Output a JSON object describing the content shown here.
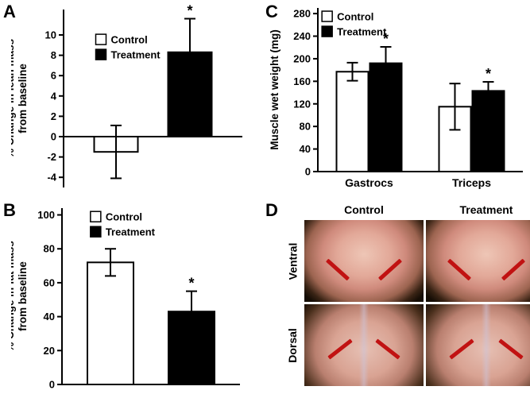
{
  "panels": {
    "a": {
      "label": "A"
    },
    "b": {
      "label": "B"
    },
    "c": {
      "label": "C"
    },
    "d": {
      "label": "D",
      "columns": [
        "Control",
        "Treatment"
      ],
      "rows": [
        "Ventral",
        "Dorsal"
      ]
    }
  },
  "colors": {
    "control_fill": "#ffffff",
    "treatment_fill": "#000000",
    "axis": "#000000",
    "arrow_red": "#c11212"
  },
  "chart_data": [
    {
      "id": "chart-a",
      "type": "bar",
      "title": "",
      "ylabel": "% Change in lean mass\nfrom baseline",
      "ylim": [
        -5,
        12.5
      ],
      "yticks": [
        -4,
        -2,
        0,
        2,
        4,
        6,
        8,
        10
      ],
      "categories": [
        ""
      ],
      "show_category_labels": false,
      "sig_marker": "*",
      "legend_position": "upper-left-inside",
      "series": [
        {
          "name": "Control",
          "fill": "#ffffff",
          "values": [
            -1.5
          ],
          "errors": [
            2.6
          ],
          "sig": [
            false
          ]
        },
        {
          "name": "Treatment",
          "fill": "#000000",
          "values": [
            8.3
          ],
          "errors": [
            3.3
          ],
          "sig": [
            true
          ]
        }
      ]
    },
    {
      "id": "chart-b",
      "type": "bar",
      "title": "",
      "ylabel": "% Change in fat mass\nfrom baseline",
      "ylim": [
        0,
        104
      ],
      "yticks": [
        0,
        20,
        40,
        60,
        80,
        100
      ],
      "categories": [
        ""
      ],
      "show_category_labels": false,
      "sig_marker": "*",
      "legend_position": "top-inside",
      "series": [
        {
          "name": "Control",
          "fill": "#ffffff",
          "values": [
            72
          ],
          "errors": [
            8
          ],
          "sig": [
            false
          ]
        },
        {
          "name": "Treatment",
          "fill": "#000000",
          "values": [
            43
          ],
          "errors": [
            12
          ],
          "sig": [
            true
          ]
        }
      ]
    },
    {
      "id": "chart-c",
      "type": "bar",
      "title": "",
      "ylabel": "Muscle wet weight (mg)",
      "ylim": [
        0,
        290
      ],
      "yticks": [
        0,
        40,
        80,
        120,
        160,
        200,
        240,
        280
      ],
      "categories": [
        "Gastrocs",
        "Triceps"
      ],
      "show_category_labels": true,
      "sig_marker": "*",
      "legend_position": "top-left-inside",
      "series": [
        {
          "name": "Control",
          "fill": "#ffffff",
          "values": [
            177,
            115
          ],
          "errors": [
            16,
            41
          ],
          "sig": [
            false,
            false
          ]
        },
        {
          "name": "Treatment",
          "fill": "#000000",
          "values": [
            192,
            143
          ],
          "errors": [
            29,
            16
          ],
          "sig": [
            true,
            true
          ]
        }
      ]
    }
  ]
}
